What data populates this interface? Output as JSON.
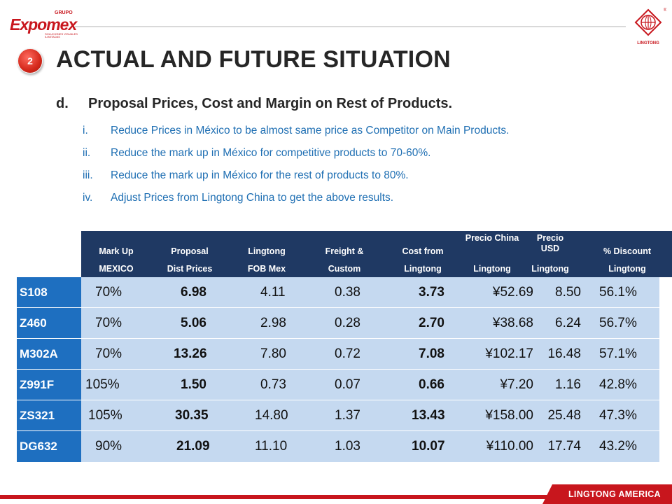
{
  "header": {
    "logo_left_brand": "Expomex",
    "logo_left_grupo": "GRUPO",
    "logo_left_tagline": "SOLUCIONES VISUALES ILIMITADAS",
    "logo_right_text": "LINGTONG"
  },
  "slide": {
    "number": "2",
    "title": "ACTUAL AND FUTURE SITUATION",
    "section_letter": "d.",
    "section_title": "Proposal Prices, Cost and Margin on Rest of Products.",
    "points": [
      {
        "roman": "i.",
        "text": "Reduce Prices in México to be almost same price as Competitor on Main Products."
      },
      {
        "roman": "ii.",
        "text": "Reduce the mark up in México for competitive products to 70-60%."
      },
      {
        "roman": "iii.",
        "text": "Reduce the mark up in México for the rest of products to 80%."
      },
      {
        "roman": "iv.",
        "text": "Adjust Prices from Lingtong China to get the above results."
      }
    ]
  },
  "table": {
    "headers": [
      {
        "top": "Mark Up",
        "bottom": "MEXICO"
      },
      {
        "top": "Proposal",
        "bottom": "Dist Prices"
      },
      {
        "top": "Lingtong",
        "bottom": "FOB Mex"
      },
      {
        "top": "Freight &",
        "bottom": "Custom"
      },
      {
        "top": "Cost from",
        "bottom": "Lingtong"
      },
      {
        "top": "Precio China",
        "bottom": "Lingtong"
      },
      {
        "top": "Precio USD",
        "bottom": "Lingtong"
      },
      {
        "top": "% Discount",
        "bottom": "Lingtong"
      }
    ],
    "rows": [
      {
        "product": "S108",
        "markup": "70%",
        "proposal": "6.98",
        "fob": "4.11",
        "freight": "0.38",
        "cost": "3.73",
        "china": "¥52.69",
        "usd": "8.50",
        "discount": "56.1%"
      },
      {
        "product": "Z460",
        "markup": "70%",
        "proposal": "5.06",
        "fob": "2.98",
        "freight": "0.28",
        "cost": "2.70",
        "china": "¥38.68",
        "usd": "6.24",
        "discount": "56.7%"
      },
      {
        "product": "M302A",
        "markup": "70%",
        "proposal": "13.26",
        "fob": "7.80",
        "freight": "0.72",
        "cost": "7.08",
        "china": "¥102.17",
        "usd": "16.48",
        "discount": "57.1%"
      },
      {
        "product": "Z991F",
        "markup": "105%",
        "proposal": "1.50",
        "fob": "0.73",
        "freight": "0.07",
        "cost": "0.66",
        "china": "¥7.20",
        "usd": "1.16",
        "discount": "42.8%"
      },
      {
        "product": "ZS321",
        "markup": "105%",
        "proposal": "30.35",
        "fob": "14.80",
        "freight": "1.37",
        "cost": "13.43",
        "china": "¥158.00",
        "usd": "25.48",
        "discount": "47.3%"
      },
      {
        "product": "DG632",
        "markup": "90%",
        "proposal": "21.09",
        "fob": "11.10",
        "freight": "1.03",
        "cost": "10.07",
        "china": "¥110.00",
        "usd": "17.74",
        "discount": "43.2%"
      }
    ]
  },
  "footer": {
    "label": "LINGTONG AMERICA"
  },
  "colors": {
    "brand_red": "#c8161d",
    "header_navy": "#1f3963",
    "label_blue": "#1e6fc0",
    "row_fill": "#c5d9f0",
    "point_blue": "#1f6fb3"
  }
}
